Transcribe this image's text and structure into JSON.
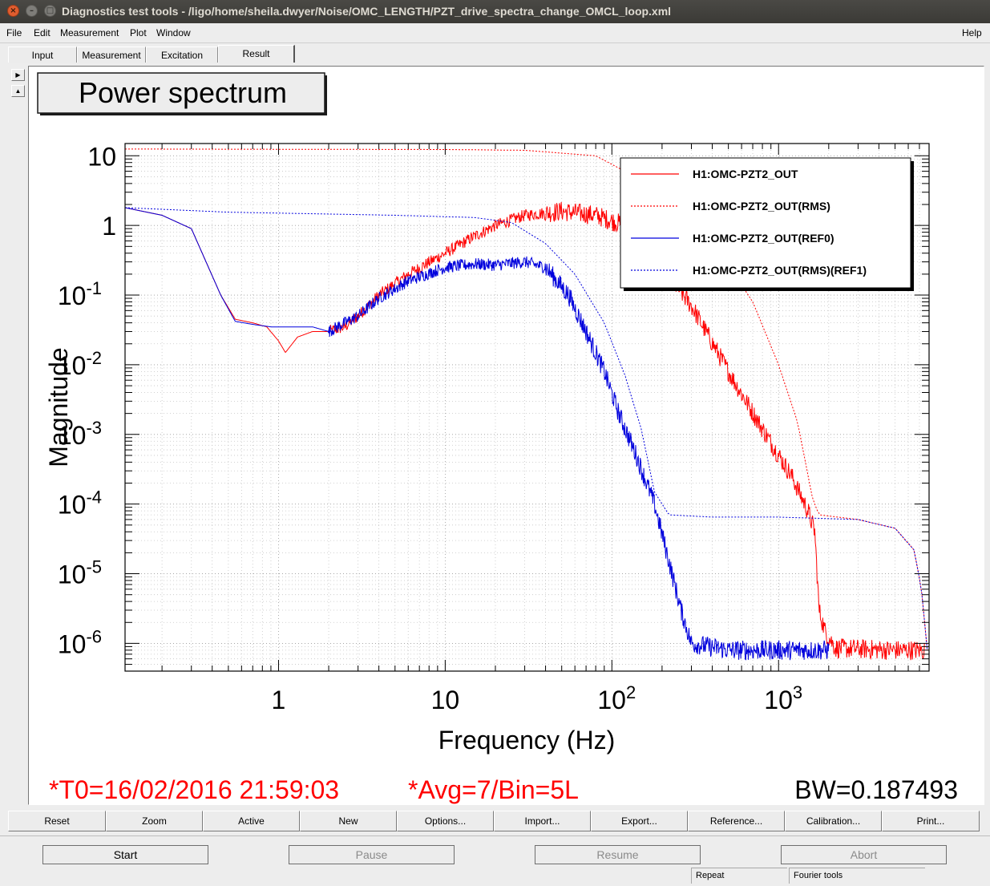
{
  "window": {
    "title": "Diagnostics test tools - /ligo/home/sheila.dwyer/Noise/OMC_LENGTH/PZT_drive_spectra_change_OMCL_loop.xml"
  },
  "menu": {
    "file": "File",
    "edit": "Edit",
    "measurement": "Measurement",
    "plot": "Plot",
    "window": "Window",
    "help": "Help"
  },
  "tabs": [
    {
      "label": "Input"
    },
    {
      "label": "Measurement"
    },
    {
      "label": "Excitation"
    },
    {
      "label": "Result",
      "active": true
    }
  ],
  "plot_title": "Power spectrum",
  "footer": {
    "t0": "*T0=16/02/2016 21:59:03",
    "avg": "*Avg=7/Bin=5L",
    "bw": "BW=0.187493"
  },
  "toolbar": [
    "Reset",
    "Zoom",
    "Active",
    "New",
    "Options...",
    "Import...",
    "Export...",
    "Reference...",
    "Calibration...",
    "Print..."
  ],
  "controls": {
    "start": "Start",
    "pause": "Pause",
    "resume": "Resume",
    "abort": "Abort"
  },
  "status": {
    "repeat": "Repeat",
    "mode": "Fourier tools"
  },
  "colors": {
    "red": "#ff0000",
    "blue": "#0000dd",
    "titlebar": "#3f3e3a"
  },
  "chart_data": {
    "type": "line",
    "xscale": "log",
    "yscale": "log",
    "xlabel": "Frequency (Hz)",
    "ylabel": "Magnitude",
    "xlim": [
      0.12,
      8000
    ],
    "ylim": [
      4e-07,
      15
    ],
    "x_ticks": [
      {
        "value": 1,
        "base": "1",
        "exp": ""
      },
      {
        "value": 10,
        "base": "10",
        "exp": ""
      },
      {
        "value": 100,
        "base": "10",
        "exp": "2"
      },
      {
        "value": 1000,
        "base": "10",
        "exp": "3"
      }
    ],
    "y_ticks": [
      {
        "value": 10,
        "base": "10",
        "exp": ""
      },
      {
        "value": 1,
        "base": "1",
        "exp": ""
      },
      {
        "value": 0.1,
        "base": "10",
        "exp": "-1"
      },
      {
        "value": 0.01,
        "base": "10",
        "exp": "-2"
      },
      {
        "value": 0.001,
        "base": "10",
        "exp": "-3"
      },
      {
        "value": 0.0001,
        "base": "10",
        "exp": "-4"
      },
      {
        "value": 1e-05,
        "base": "10",
        "exp": "-5"
      },
      {
        "value": 1e-06,
        "base": "10",
        "exp": "-6"
      }
    ],
    "legend_position": "top-right",
    "series": [
      {
        "name": "H1:OMC-PZT2_OUT",
        "color": "#ff0000",
        "dash": "solid",
        "noise": 0.22,
        "points": [
          [
            0.12,
            1.8
          ],
          [
            0.2,
            1.4
          ],
          [
            0.3,
            0.9
          ],
          [
            0.38,
            0.25
          ],
          [
            0.45,
            0.1
          ],
          [
            0.55,
            0.045
          ],
          [
            0.7,
            0.04
          ],
          [
            0.85,
            0.035
          ],
          [
            1.0,
            0.022
          ],
          [
            1.1,
            0.015
          ],
          [
            1.3,
            0.025
          ],
          [
            1.6,
            0.03
          ],
          [
            2.0,
            0.03
          ],
          [
            2.5,
            0.035
          ],
          [
            3.0,
            0.05
          ],
          [
            4.0,
            0.1
          ],
          [
            6.0,
            0.2
          ],
          [
            10,
            0.4
          ],
          [
            15,
            0.7
          ],
          [
            20,
            1.0
          ],
          [
            30,
            1.4
          ],
          [
            50,
            1.6
          ],
          [
            80,
            1.4
          ],
          [
            120,
            1.0
          ],
          [
            160,
            0.45
          ],
          [
            200,
            0.25
          ],
          [
            300,
            0.07
          ],
          [
            500,
            0.008
          ],
          [
            800,
            0.0012
          ],
          [
            1200,
            0.00025
          ],
          [
            1500,
            8e-05
          ],
          [
            1650,
            4e-05
          ],
          [
            1750,
            3e-06
          ],
          [
            1900,
            1.5e-06
          ],
          [
            2200,
            8.5e-07
          ],
          [
            5000,
            8e-07
          ],
          [
            7500,
            8e-07
          ]
        ]
      },
      {
        "name": "H1:OMC-PZT2_OUT(RMS)",
        "color": "#ff0000",
        "dash": "dotted",
        "noise": 0,
        "points": [
          [
            0.12,
            12.5
          ],
          [
            10,
            12.3
          ],
          [
            30,
            12
          ],
          [
            80,
            10
          ],
          [
            150,
            4.5
          ],
          [
            250,
            1.8
          ],
          [
            400,
            0.6
          ],
          [
            700,
            0.08
          ],
          [
            1000,
            0.01
          ],
          [
            1300,
            0.0015
          ],
          [
            1600,
            0.00012
          ],
          [
            1750,
            7e-05
          ],
          [
            3000,
            6e-05
          ],
          [
            5000,
            4.5e-05
          ],
          [
            6500,
            2.2e-05
          ],
          [
            7200,
            6e-06
          ],
          [
            7800,
            8e-07
          ]
        ]
      },
      {
        "name": "H1:OMC-PZT2_OUT(REF0)",
        "color": "#0000dd",
        "dash": "solid",
        "noise": 0.22,
        "points": [
          [
            0.12,
            1.8
          ],
          [
            0.2,
            1.4
          ],
          [
            0.3,
            0.9
          ],
          [
            0.38,
            0.25
          ],
          [
            0.45,
            0.1
          ],
          [
            0.55,
            0.042
          ],
          [
            0.7,
            0.038
          ],
          [
            0.9,
            0.035
          ],
          [
            1.2,
            0.035
          ],
          [
            1.6,
            0.035
          ],
          [
            2.0,
            0.03
          ],
          [
            2.5,
            0.04
          ],
          [
            3.0,
            0.05
          ],
          [
            4.0,
            0.09
          ],
          [
            6,
            0.16
          ],
          [
            10,
            0.25
          ],
          [
            15,
            0.28
          ],
          [
            20,
            0.27
          ],
          [
            30,
            0.3
          ],
          [
            40,
            0.25
          ],
          [
            55,
            0.1
          ],
          [
            70,
            0.03
          ],
          [
            90,
            0.008
          ],
          [
            110,
            0.002
          ],
          [
            140,
            0.0005
          ],
          [
            180,
            0.0001
          ],
          [
            220,
            1.5e-05
          ],
          [
            260,
            3e-06
          ],
          [
            300,
            1e-06
          ],
          [
            500,
            8e-07
          ],
          [
            2000,
            8e-07
          ]
        ]
      },
      {
        "name": "H1:OMC-PZT2_OUT(RMS)(REF1)",
        "color": "#0000dd",
        "dash": "dotted",
        "noise": 0,
        "points": [
          [
            0.12,
            1.8
          ],
          [
            0.5,
            1.55
          ],
          [
            5,
            1.4
          ],
          [
            15,
            1.3
          ],
          [
            25,
            1.1
          ],
          [
            40,
            0.55
          ],
          [
            60,
            0.2
          ],
          [
            90,
            0.04
          ],
          [
            120,
            0.007
          ],
          [
            150,
            0.0012
          ],
          [
            180,
            0.00015
          ],
          [
            220,
            7e-05
          ],
          [
            400,
            6.5e-05
          ],
          [
            1000,
            6.5e-05
          ],
          [
            3000,
            6e-05
          ],
          [
            5000,
            4.5e-05
          ],
          [
            6500,
            2.2e-05
          ],
          [
            7200,
            6e-06
          ],
          [
            7800,
            8e-07
          ]
        ]
      }
    ]
  }
}
